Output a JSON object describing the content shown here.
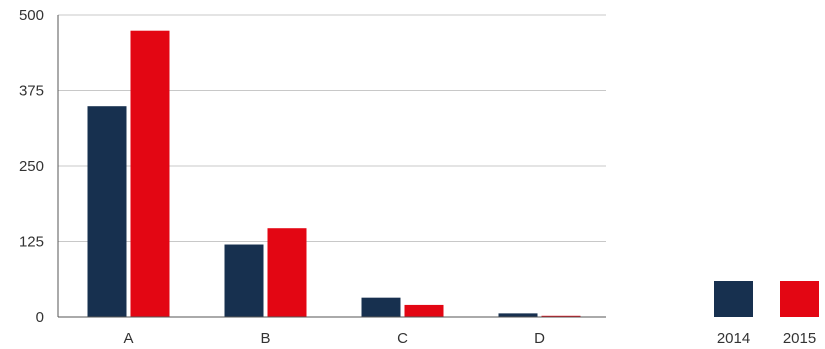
{
  "chart_data": {
    "type": "bar",
    "categories": [
      "A",
      "B",
      "C",
      "D"
    ],
    "series": [
      {
        "name": "2014",
        "values": [
          349,
          120,
          32,
          6
        ],
        "color": "#17304f"
      },
      {
        "name": "2015",
        "values": [
          474,
          147,
          20,
          2
        ],
        "color": "#e30613"
      }
    ],
    "ylim": [
      0,
      500
    ],
    "yticks": [
      0,
      125,
      250,
      375,
      500
    ],
    "grid": true,
    "legend": "bottom-right",
    "title": "",
    "xlabel": "",
    "ylabel": ""
  }
}
